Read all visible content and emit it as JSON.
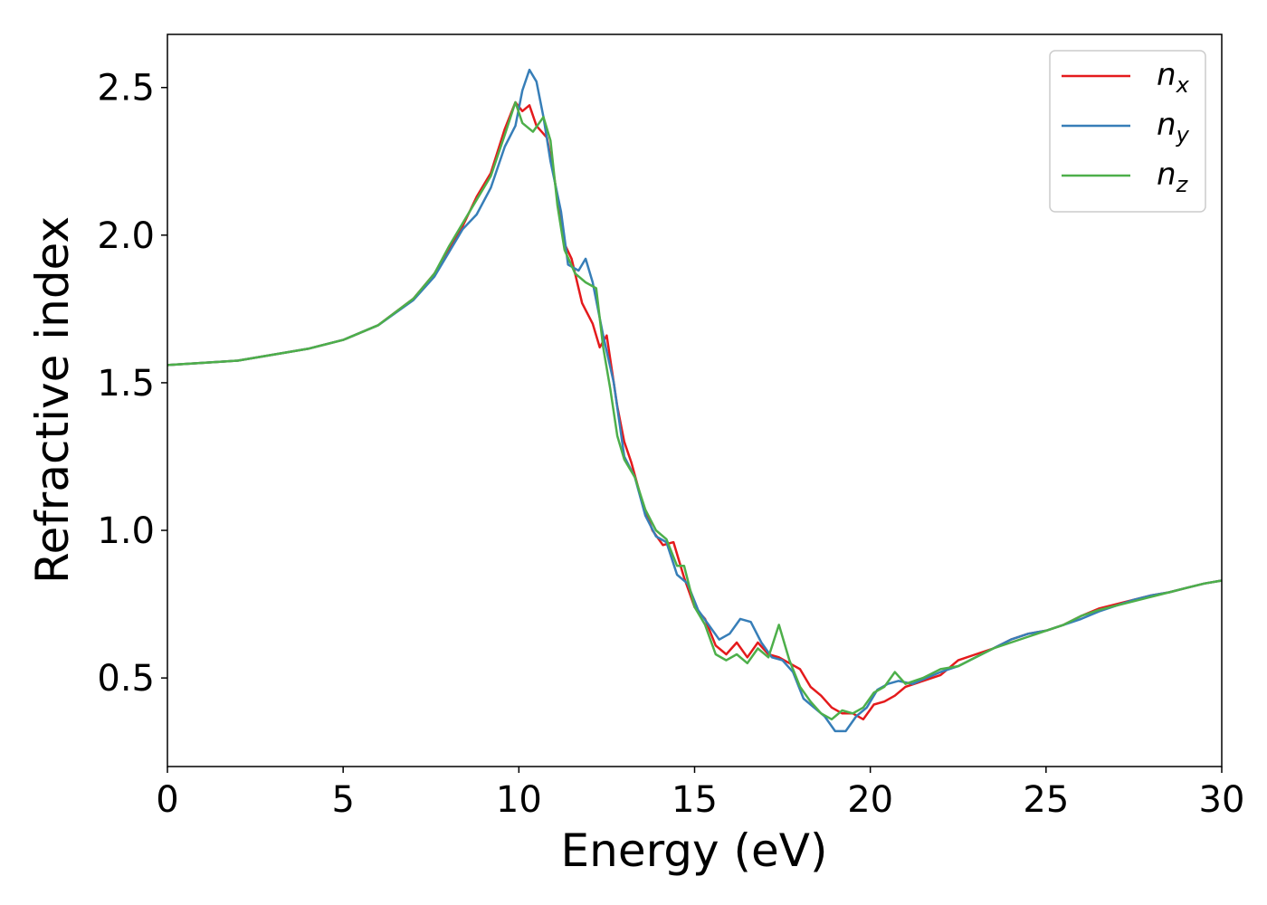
{
  "chart_data": {
    "type": "line",
    "xlabel": "Energy (eV)",
    "ylabel": "Refractive index",
    "xlim": [
      0,
      30
    ],
    "ylim": [
      0.2,
      2.68
    ],
    "x_ticks": [
      0,
      5,
      10,
      15,
      20,
      25,
      30
    ],
    "y_ticks": [
      0.5,
      1.0,
      1.5,
      2.0,
      2.5
    ],
    "x_tick_labels": [
      "0",
      "5",
      "10",
      "15",
      "20",
      "25",
      "30"
    ],
    "y_tick_labels": [
      "0.5",
      "1.0",
      "1.5",
      "2.0",
      "2.5"
    ],
    "grid": false,
    "legend_position": "upper right",
    "series": [
      {
        "name": "n",
        "subscript": "x",
        "color": "#e41a1c",
        "points": [
          [
            0,
            1.56
          ],
          [
            2,
            1.575
          ],
          [
            4,
            1.615
          ],
          [
            5,
            1.645
          ],
          [
            6,
            1.695
          ],
          [
            7,
            1.785
          ],
          [
            7.6,
            1.87
          ],
          [
            8,
            1.95
          ],
          [
            8.4,
            2.03
          ],
          [
            8.8,
            2.13
          ],
          [
            9.2,
            2.21
          ],
          [
            9.6,
            2.36
          ],
          [
            9.9,
            2.45
          ],
          [
            10.1,
            2.42
          ],
          [
            10.3,
            2.44
          ],
          [
            10.5,
            2.37
          ],
          [
            10.8,
            2.33
          ],
          [
            11.0,
            2.2
          ],
          [
            11.3,
            1.97
          ],
          [
            11.5,
            1.92
          ],
          [
            11.8,
            1.77
          ],
          [
            12.1,
            1.7
          ],
          [
            12.3,
            1.62
          ],
          [
            12.5,
            1.66
          ],
          [
            12.8,
            1.42
          ],
          [
            13.0,
            1.3
          ],
          [
            13.2,
            1.23
          ],
          [
            13.5,
            1.1
          ],
          [
            13.8,
            1.0
          ],
          [
            14.1,
            0.95
          ],
          [
            14.4,
            0.96
          ],
          [
            14.7,
            0.84
          ],
          [
            15.0,
            0.74
          ],
          [
            15.3,
            0.7
          ],
          [
            15.6,
            0.61
          ],
          [
            15.9,
            0.58
          ],
          [
            16.2,
            0.62
          ],
          [
            16.5,
            0.57
          ],
          [
            16.8,
            0.62
          ],
          [
            17.1,
            0.58
          ],
          [
            17.4,
            0.57
          ],
          [
            17.7,
            0.55
          ],
          [
            18.0,
            0.53
          ],
          [
            18.3,
            0.47
          ],
          [
            18.6,
            0.44
          ],
          [
            18.9,
            0.4
          ],
          [
            19.2,
            0.38
          ],
          [
            19.5,
            0.38
          ],
          [
            19.8,
            0.36
          ],
          [
            20.1,
            0.41
          ],
          [
            20.4,
            0.42
          ],
          [
            20.7,
            0.44
          ],
          [
            21.0,
            0.47
          ],
          [
            21.5,
            0.49
          ],
          [
            22.0,
            0.51
          ],
          [
            22.5,
            0.56
          ],
          [
            23.0,
            0.58
          ],
          [
            23.5,
            0.6
          ],
          [
            24.0,
            0.63
          ],
          [
            24.5,
            0.65
          ],
          [
            25.0,
            0.66
          ],
          [
            25.5,
            0.68
          ],
          [
            26.0,
            0.71
          ],
          [
            26.5,
            0.735
          ],
          [
            27.0,
            0.75
          ],
          [
            27.5,
            0.765
          ],
          [
            28.0,
            0.78
          ],
          [
            28.5,
            0.79
          ],
          [
            29.0,
            0.805
          ],
          [
            29.5,
            0.82
          ],
          [
            30.0,
            0.83
          ]
        ]
      },
      {
        "name": "n",
        "subscript": "y",
        "color": "#377eb8",
        "points": [
          [
            0,
            1.56
          ],
          [
            2,
            1.575
          ],
          [
            4,
            1.615
          ],
          [
            5,
            1.645
          ],
          [
            6,
            1.695
          ],
          [
            7,
            1.78
          ],
          [
            7.6,
            1.86
          ],
          [
            8,
            1.94
          ],
          [
            8.4,
            2.02
          ],
          [
            8.8,
            2.07
          ],
          [
            9.2,
            2.16
          ],
          [
            9.6,
            2.3
          ],
          [
            9.9,
            2.37
          ],
          [
            10.1,
            2.49
          ],
          [
            10.3,
            2.56
          ],
          [
            10.5,
            2.52
          ],
          [
            10.7,
            2.4
          ],
          [
            10.9,
            2.25
          ],
          [
            11.2,
            2.08
          ],
          [
            11.4,
            1.9
          ],
          [
            11.7,
            1.88
          ],
          [
            11.9,
            1.92
          ],
          [
            12.1,
            1.84
          ],
          [
            12.4,
            1.66
          ],
          [
            12.7,
            1.5
          ],
          [
            13.0,
            1.25
          ],
          [
            13.3,
            1.18
          ],
          [
            13.6,
            1.05
          ],
          [
            13.9,
            0.98
          ],
          [
            14.2,
            0.96
          ],
          [
            14.5,
            0.85
          ],
          [
            14.8,
            0.82
          ],
          [
            15.1,
            0.73
          ],
          [
            15.4,
            0.68
          ],
          [
            15.7,
            0.63
          ],
          [
            16.0,
            0.65
          ],
          [
            16.3,
            0.7
          ],
          [
            16.6,
            0.69
          ],
          [
            16.9,
            0.62
          ],
          [
            17.2,
            0.57
          ],
          [
            17.5,
            0.56
          ],
          [
            17.8,
            0.52
          ],
          [
            18.1,
            0.43
          ],
          [
            18.4,
            0.4
          ],
          [
            18.7,
            0.37
          ],
          [
            19.0,
            0.32
          ],
          [
            19.3,
            0.32
          ],
          [
            19.6,
            0.37
          ],
          [
            19.9,
            0.4
          ],
          [
            20.2,
            0.46
          ],
          [
            20.5,
            0.48
          ],
          [
            20.8,
            0.49
          ],
          [
            21.2,
            0.48
          ],
          [
            21.6,
            0.5
          ],
          [
            22.0,
            0.52
          ],
          [
            22.5,
            0.54
          ],
          [
            23.0,
            0.57
          ],
          [
            23.5,
            0.6
          ],
          [
            24.0,
            0.63
          ],
          [
            24.5,
            0.65
          ],
          [
            25.0,
            0.66
          ],
          [
            25.5,
            0.68
          ],
          [
            26.0,
            0.7
          ],
          [
            26.5,
            0.725
          ],
          [
            27.0,
            0.745
          ],
          [
            27.5,
            0.765
          ],
          [
            28.0,
            0.78
          ],
          [
            28.5,
            0.79
          ],
          [
            29.0,
            0.805
          ],
          [
            29.5,
            0.82
          ],
          [
            30.0,
            0.83
          ]
        ]
      },
      {
        "name": "n",
        "subscript": "z",
        "color": "#4daf4a",
        "points": [
          [
            0,
            1.56
          ],
          [
            2,
            1.575
          ],
          [
            4,
            1.615
          ],
          [
            5,
            1.645
          ],
          [
            6,
            1.695
          ],
          [
            7,
            1.785
          ],
          [
            7.6,
            1.87
          ],
          [
            8,
            1.96
          ],
          [
            8.4,
            2.04
          ],
          [
            8.8,
            2.12
          ],
          [
            9.2,
            2.2
          ],
          [
            9.6,
            2.34
          ],
          [
            9.9,
            2.45
          ],
          [
            10.1,
            2.38
          ],
          [
            10.4,
            2.35
          ],
          [
            10.7,
            2.4
          ],
          [
            10.9,
            2.32
          ],
          [
            11.1,
            2.1
          ],
          [
            11.3,
            1.95
          ],
          [
            11.6,
            1.87
          ],
          [
            11.9,
            1.84
          ],
          [
            12.2,
            1.82
          ],
          [
            12.4,
            1.62
          ],
          [
            12.6,
            1.48
          ],
          [
            12.8,
            1.32
          ],
          [
            13.0,
            1.24
          ],
          [
            13.3,
            1.18
          ],
          [
            13.6,
            1.07
          ],
          [
            13.9,
            1.0
          ],
          [
            14.2,
            0.97
          ],
          [
            14.5,
            0.88
          ],
          [
            14.7,
            0.88
          ],
          [
            15.0,
            0.74
          ],
          [
            15.3,
            0.68
          ],
          [
            15.6,
            0.58
          ],
          [
            15.9,
            0.56
          ],
          [
            16.2,
            0.58
          ],
          [
            16.5,
            0.55
          ],
          [
            16.8,
            0.6
          ],
          [
            17.1,
            0.57
          ],
          [
            17.4,
            0.68
          ],
          [
            17.7,
            0.56
          ],
          [
            18.0,
            0.47
          ],
          [
            18.3,
            0.42
          ],
          [
            18.6,
            0.38
          ],
          [
            18.9,
            0.36
          ],
          [
            19.2,
            0.39
          ],
          [
            19.5,
            0.38
          ],
          [
            19.8,
            0.4
          ],
          [
            20.1,
            0.45
          ],
          [
            20.4,
            0.47
          ],
          [
            20.7,
            0.52
          ],
          [
            21.0,
            0.48
          ],
          [
            21.5,
            0.5
          ],
          [
            22.0,
            0.53
          ],
          [
            22.5,
            0.54
          ],
          [
            23.0,
            0.57
          ],
          [
            23.5,
            0.6
          ],
          [
            24.0,
            0.62
          ],
          [
            24.5,
            0.64
          ],
          [
            25.0,
            0.66
          ],
          [
            25.5,
            0.68
          ],
          [
            26.0,
            0.71
          ],
          [
            26.5,
            0.73
          ],
          [
            27.0,
            0.745
          ],
          [
            27.5,
            0.76
          ],
          [
            28.0,
            0.775
          ],
          [
            28.5,
            0.79
          ],
          [
            29.0,
            0.805
          ],
          [
            29.5,
            0.82
          ],
          [
            30.0,
            0.83
          ]
        ]
      }
    ]
  }
}
